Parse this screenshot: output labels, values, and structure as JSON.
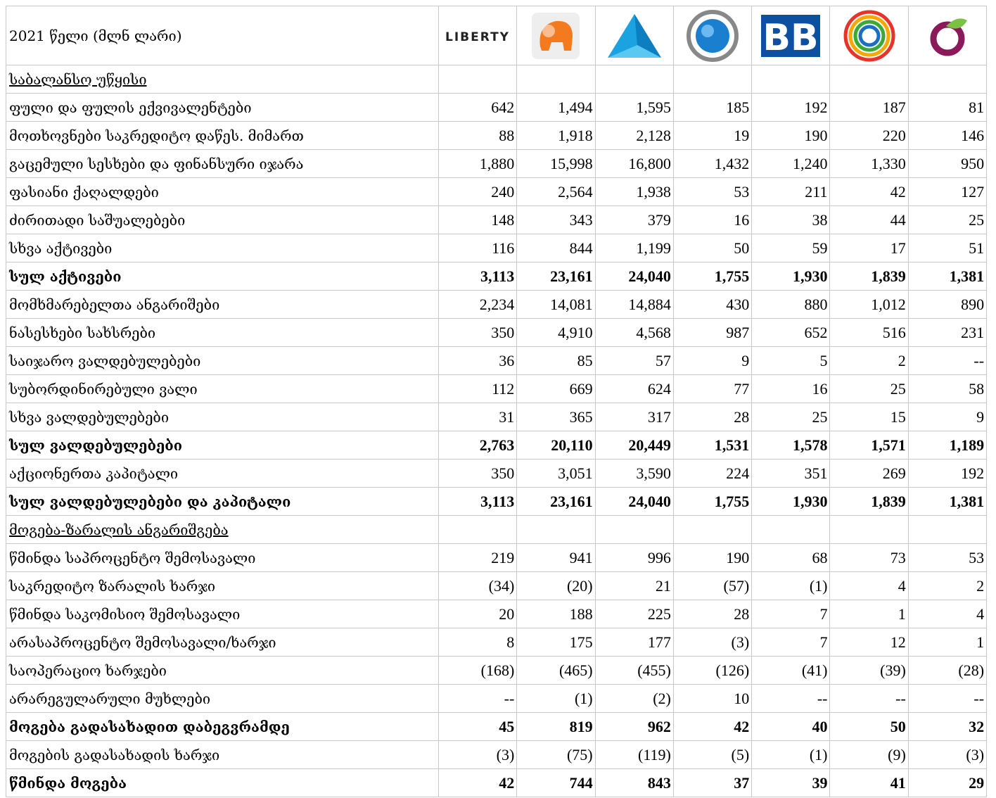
{
  "header": {
    "title": "2021 წელი (მლნ ლარი)",
    "logo_text": "LIBERTY"
  },
  "table": {
    "rows": [
      {
        "section": "საბალანსო უწყისი"
      },
      {
        "label": "ფული და ფულის ექვივალენტები",
        "values": [
          "642",
          "1,494",
          "1,595",
          "185",
          "192",
          "187",
          "81"
        ]
      },
      {
        "label": "მოთხოვნები საკრედიტო დაწეს. მიმართ",
        "values": [
          "88",
          "1,918",
          "2,128",
          "19",
          "190",
          "220",
          "146"
        ]
      },
      {
        "label": "გაცემული სესხები და ფინანსური იჯარა",
        "values": [
          "1,880",
          "15,998",
          "16,800",
          "1,432",
          "1,240",
          "1,330",
          "950"
        ]
      },
      {
        "label": "ფასიანი ქაღალდები",
        "values": [
          "240",
          "2,564",
          "1,938",
          "53",
          "211",
          "42",
          "127"
        ]
      },
      {
        "label": "ძირითადი საშუალებები",
        "values": [
          "148",
          "343",
          "379",
          "16",
          "38",
          "44",
          "25"
        ]
      },
      {
        "label": "სხვა აქტივები",
        "values": [
          "116",
          "844",
          "1,199",
          "50",
          "59",
          "17",
          "51"
        ]
      },
      {
        "label": "სულ აქტივები",
        "bold": true,
        "values": [
          "3,113",
          "23,161",
          "24,040",
          "1,755",
          "1,930",
          "1,839",
          "1,381"
        ]
      },
      {
        "label": "მომხმარებელთა ანგარიშები",
        "values": [
          "2,234",
          "14,081",
          "14,884",
          "430",
          "880",
          "1,012",
          "890"
        ]
      },
      {
        "label": "ნასესხები სახსრები",
        "values": [
          "350",
          "4,910",
          "4,568",
          "987",
          "652",
          "516",
          "231"
        ]
      },
      {
        "label": "საიჯარო ვალდებულებები",
        "values": [
          "36",
          "85",
          "57",
          "9",
          "5",
          "2",
          "--"
        ]
      },
      {
        "label": "სუბორდინირებული ვალი",
        "values": [
          "112",
          "669",
          "624",
          "77",
          "16",
          "25",
          "58"
        ]
      },
      {
        "label": "სხვა ვალდებულებები",
        "values": [
          "31",
          "365",
          "317",
          "28",
          "25",
          "15",
          "9"
        ]
      },
      {
        "label": "სულ ვალდებულებები",
        "bold": true,
        "values": [
          "2,763",
          "20,110",
          "20,449",
          "1,531",
          "1,578",
          "1,571",
          "1,189"
        ]
      },
      {
        "label": "აქციონერთა კაპიტალი",
        "values": [
          "350",
          "3,051",
          "3,590",
          "224",
          "351",
          "269",
          "192"
        ]
      },
      {
        "label": "სულ ვალდებულებები და კაპიტალი",
        "bold": true,
        "values": [
          "3,113",
          "23,161",
          "24,040",
          "1,755",
          "1,930",
          "1,839",
          "1,381"
        ]
      },
      {
        "section": "მოგება-ზარალის ანგარიშგება"
      },
      {
        "label": "წმინდა საპროცენტო შემოსავალი",
        "values": [
          "219",
          "941",
          "996",
          "190",
          "68",
          "73",
          "53"
        ]
      },
      {
        "label": "საკრედიტო ზარალის ხარჯი",
        "values": [
          "(34)",
          "(20)",
          "21",
          "(57)",
          "(1)",
          "4",
          "2"
        ]
      },
      {
        "label": "წმინდა საკომისიო შემოსავალი",
        "values": [
          "20",
          "188",
          "225",
          "28",
          "7",
          "1",
          "4"
        ]
      },
      {
        "label": "არასაპროცენტო შემოსავალი/ხარჯი",
        "values": [
          "8",
          "175",
          "177",
          "(3)",
          "7",
          "12",
          "1"
        ]
      },
      {
        "label": "საოპერაციო ხარჯები",
        "values": [
          "(168)",
          "(465)",
          "(455)",
          "(126)",
          "(41)",
          "(39)",
          "(28)"
        ]
      },
      {
        "label": "არარეგულარული მუხლები",
        "values": [
          "--",
          "(1)",
          "(2)",
          "10",
          "--",
          "--",
          "--"
        ]
      },
      {
        "label": "მოგება გადასახადით დაბეგვრამდე",
        "bold": true,
        "values": [
          "45",
          "819",
          "962",
          "42",
          "40",
          "50",
          "32"
        ]
      },
      {
        "label": "მოგების გადასახადის ხარჯი",
        "values": [
          "(3)",
          "(75)",
          "(119)",
          "(5)",
          "(1)",
          "(9)",
          "(3)"
        ]
      },
      {
        "label": "წმინდა მოგება",
        "bold": true,
        "values": [
          "42",
          "744",
          "843",
          "37",
          "39",
          "41",
          "29"
        ]
      }
    ]
  }
}
